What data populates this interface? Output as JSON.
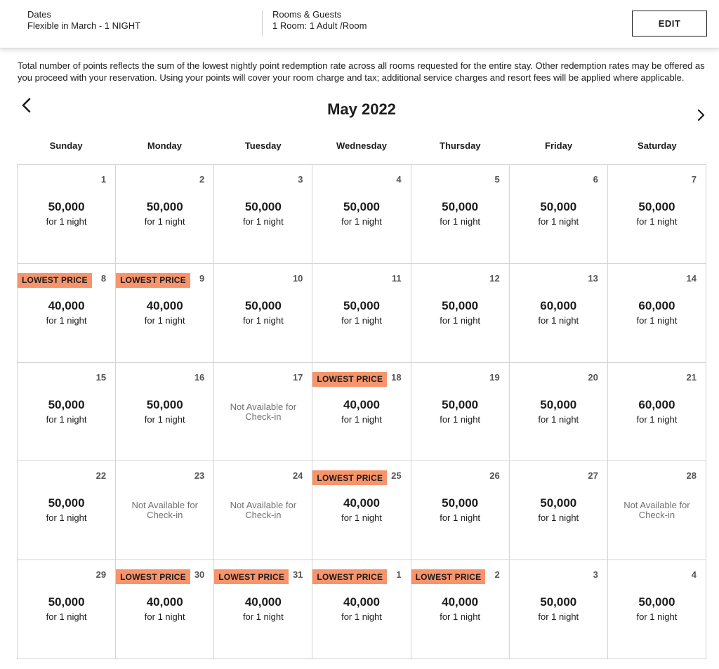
{
  "header": {
    "dates_label": "Dates",
    "dates_value": "Flexible in March - 1 NIGHT",
    "rooms_label": "Rooms & Guests",
    "rooms_value": "1 Room: 1 Adult /Room",
    "edit_label": "EDIT"
  },
  "notice": "Total number of points reflects the sum of the lowest nightly point redemption rate across all rooms requested for the entire stay. Other redemption rates may be offered as you proceed with your reservation. Using your points will cover your room charge and tax; additional service charges and resort fees will be applied where applicable.",
  "calendar": {
    "month_title": "May 2022",
    "prev_icon": "chevron-left-icon",
    "next_icon": "chevron-right-icon",
    "weekdays": [
      "Sunday",
      "Monday",
      "Tuesday",
      "Wednesday",
      "Thursday",
      "Friday",
      "Saturday"
    ],
    "badge_text": "LOWEST PRICE",
    "night_text": "for 1 night",
    "unavailable_text": "Not Available for Check-in",
    "badge_color": "#f7946b",
    "days": [
      {
        "day": "1",
        "points": "50,000",
        "lowest": false,
        "available": true
      },
      {
        "day": "2",
        "points": "50,000",
        "lowest": false,
        "available": true
      },
      {
        "day": "3",
        "points": "50,000",
        "lowest": false,
        "available": true
      },
      {
        "day": "4",
        "points": "50,000",
        "lowest": false,
        "available": true
      },
      {
        "day": "5",
        "points": "50,000",
        "lowest": false,
        "available": true
      },
      {
        "day": "6",
        "points": "50,000",
        "lowest": false,
        "available": true
      },
      {
        "day": "7",
        "points": "50,000",
        "lowest": false,
        "available": true
      },
      {
        "day": "8",
        "points": "40,000",
        "lowest": true,
        "available": true
      },
      {
        "day": "9",
        "points": "40,000",
        "lowest": true,
        "available": true
      },
      {
        "day": "10",
        "points": "50,000",
        "lowest": false,
        "available": true
      },
      {
        "day": "11",
        "points": "50,000",
        "lowest": false,
        "available": true
      },
      {
        "day": "12",
        "points": "50,000",
        "lowest": false,
        "available": true
      },
      {
        "day": "13",
        "points": "60,000",
        "lowest": false,
        "available": true
      },
      {
        "day": "14",
        "points": "60,000",
        "lowest": false,
        "available": true
      },
      {
        "day": "15",
        "points": "50,000",
        "lowest": false,
        "available": true
      },
      {
        "day": "16",
        "points": "50,000",
        "lowest": false,
        "available": true
      },
      {
        "day": "17",
        "points": "",
        "lowest": false,
        "available": false
      },
      {
        "day": "18",
        "points": "40,000",
        "lowest": true,
        "available": true
      },
      {
        "day": "19",
        "points": "50,000",
        "lowest": false,
        "available": true
      },
      {
        "day": "20",
        "points": "50,000",
        "lowest": false,
        "available": true
      },
      {
        "day": "21",
        "points": "60,000",
        "lowest": false,
        "available": true
      },
      {
        "day": "22",
        "points": "50,000",
        "lowest": false,
        "available": true
      },
      {
        "day": "23",
        "points": "",
        "lowest": false,
        "available": false
      },
      {
        "day": "24",
        "points": "",
        "lowest": false,
        "available": false
      },
      {
        "day": "25",
        "points": "40,000",
        "lowest": true,
        "available": true
      },
      {
        "day": "26",
        "points": "50,000",
        "lowest": false,
        "available": true
      },
      {
        "day": "27",
        "points": "50,000",
        "lowest": false,
        "available": true
      },
      {
        "day": "28",
        "points": "",
        "lowest": false,
        "available": false
      },
      {
        "day": "29",
        "points": "50,000",
        "lowest": false,
        "available": true
      },
      {
        "day": "30",
        "points": "40,000",
        "lowest": true,
        "available": true
      },
      {
        "day": "31",
        "points": "40,000",
        "lowest": true,
        "available": true
      },
      {
        "day": "1",
        "points": "40,000",
        "lowest": true,
        "available": true
      },
      {
        "day": "2",
        "points": "40,000",
        "lowest": true,
        "available": true
      },
      {
        "day": "3",
        "points": "50,000",
        "lowest": false,
        "available": true
      },
      {
        "day": "4",
        "points": "50,000",
        "lowest": false,
        "available": true
      }
    ]
  }
}
